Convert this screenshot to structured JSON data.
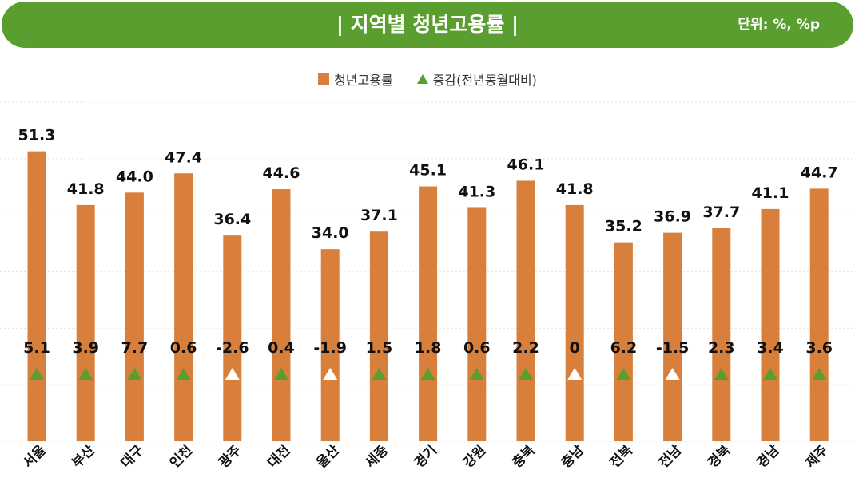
{
  "header": {
    "title": "| 지역별 청년고용률 |",
    "unit": "단위: %, %p"
  },
  "legend": {
    "rate_label": "청년고용률",
    "change_label": "증감(전년동월대비)"
  },
  "colors": {
    "banner": "#5a9e2f",
    "bar": "#d97f3c",
    "up": "#5a9e2f",
    "down": "#ffffff"
  },
  "chart_data": {
    "type": "bar",
    "categories": [
      "서울",
      "부산",
      "대구",
      "인천",
      "광주",
      "대전",
      "울산",
      "세종",
      "경기",
      "강원",
      "충북",
      "충남",
      "전북",
      "전남",
      "경북",
      "경남",
      "제주"
    ],
    "series": [
      {
        "name": "청년고용률",
        "values": [
          51.3,
          41.8,
          44.0,
          47.4,
          36.4,
          44.6,
          34.0,
          37.1,
          45.1,
          41.3,
          46.1,
          41.8,
          35.2,
          36.9,
          37.7,
          41.1,
          44.7
        ]
      },
      {
        "name": "증감(전년동월대비)",
        "values": [
          5.1,
          3.9,
          7.7,
          0.6,
          -2.6,
          0.4,
          -1.9,
          1.5,
          1.8,
          0.6,
          2.2,
          0,
          6.2,
          -1.5,
          2.3,
          3.4,
          3.6
        ]
      }
    ],
    "value_labels": [
      "51.3",
      "41.8",
      "44.0",
      "47.4",
      "36.4",
      "44.6",
      "34.0",
      "37.1",
      "45.1",
      "41.3",
      "46.1",
      "41.8",
      "35.2",
      "36.9",
      "37.7",
      "41.1",
      "44.7"
    ],
    "change_labels": [
      "5.1",
      "3.9",
      "7.7",
      "0.6",
      "-2.6",
      "0.4",
      "-1.9",
      "1.5",
      "1.8",
      "0.6",
      "2.2",
      "0",
      "6.2",
      "-1.5",
      "2.3",
      "3.4",
      "3.6"
    ],
    "ylim": [
      0,
      60
    ],
    "grid": true,
    "legend_position": "top-center"
  }
}
